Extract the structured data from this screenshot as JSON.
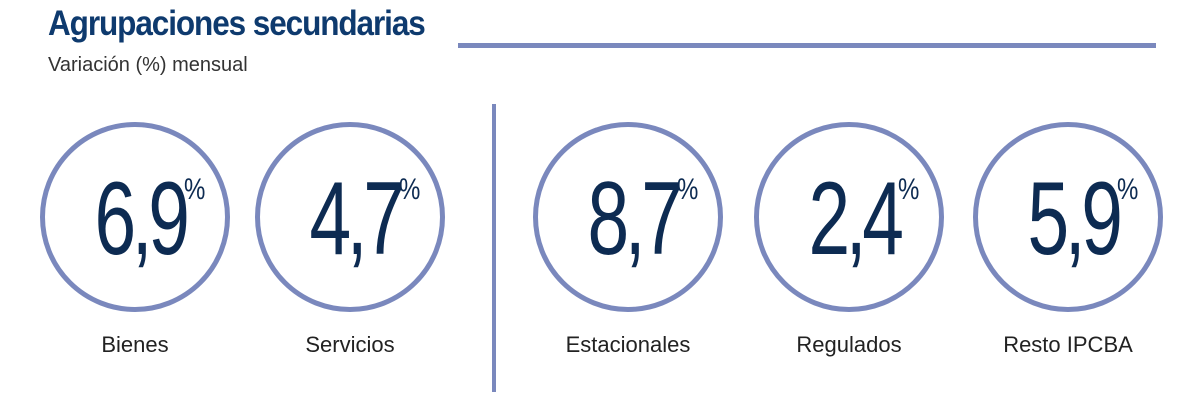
{
  "header": {
    "title": "Agrupaciones secundarias",
    "subtitle": "Variación (%) mensual"
  },
  "colors": {
    "title": "#0e3a6e",
    "value": "#0d2b52",
    "accent": "#7a88bd"
  },
  "chart_data": {
    "type": "table",
    "title": "Agrupaciones secundarias",
    "subtitle": "Variación (%) mensual",
    "unit": "%",
    "groups": [
      {
        "items": [
          {
            "label": "Bienes",
            "value": 6.9,
            "display": "6,9"
          },
          {
            "label": "Servicios",
            "value": 4.7,
            "display": "4,7"
          }
        ]
      },
      {
        "items": [
          {
            "label": "Estacionales",
            "value": 8.7,
            "display": "8,7"
          },
          {
            "label": "Regulados",
            "value": 2.4,
            "display": "2,4"
          },
          {
            "label": "Resto IPCBA",
            "value": 5.9,
            "display": "5,9"
          }
        ]
      }
    ]
  }
}
